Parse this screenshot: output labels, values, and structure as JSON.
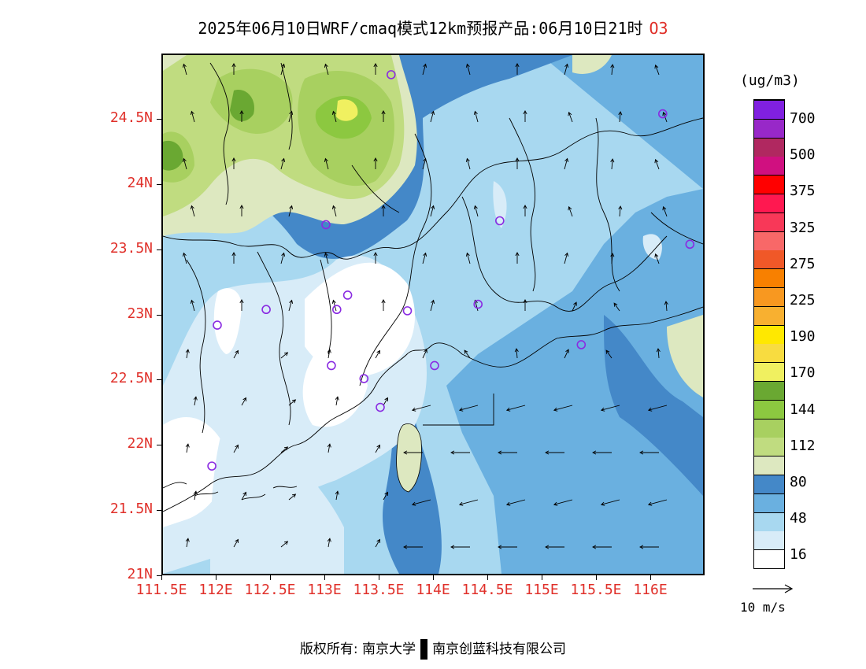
{
  "title": {
    "main": "2025年06月10日WRF/cmaq模式12km预报产品:06月10日21时",
    "species": "O3"
  },
  "axes": {
    "lat_labels": [
      "24.5N",
      "24N",
      "23.5N",
      "23N",
      "22.5N",
      "22N",
      "21.5N",
      "21N"
    ],
    "lon_labels": [
      "111.5E",
      "112E",
      "112.5E",
      "113E",
      "113.5E",
      "114E",
      "114.5E",
      "115E",
      "115.5E",
      "116E"
    ]
  },
  "colorbar": {
    "unit": "(ug/m3)",
    "labels": [
      "700",
      "500",
      "375",
      "325",
      "275",
      "225",
      "190",
      "170",
      "144",
      "112",
      "80",
      "48",
      "16"
    ],
    "colors": [
      "#ffffff",
      "#d8ecf8",
      "#a8d8f0",
      "#6ab0e0",
      "#4488c8",
      "#dde8c0",
      "#c0dc80",
      "#a8d060",
      "#8cc840",
      "#6aa832",
      "#f0f060",
      "#f8dc40",
      "#ffe800",
      "#f8b030",
      "#f89820",
      "#f88000",
      "#f05828",
      "#f86868",
      "#f83858",
      "#ff1850",
      "#ff0000",
      "#d01080",
      "#b02860",
      "#9828c8",
      "#8020e0"
    ],
    "legend_color_count": 25
  },
  "wind_reference": {
    "label": "10 m/s"
  },
  "stations": [
    {
      "lon": 113.6,
      "lat": 24.85
    },
    {
      "lon": 116.1,
      "lat": 24.55
    },
    {
      "lon": 113.0,
      "lat": 23.7
    },
    {
      "lon": 114.6,
      "lat": 23.73
    },
    {
      "lon": 116.35,
      "lat": 23.55
    },
    {
      "lon": 112.45,
      "lat": 23.05
    },
    {
      "lon": 113.1,
      "lat": 23.05
    },
    {
      "lon": 113.2,
      "lat": 23.16
    },
    {
      "lon": 113.75,
      "lat": 23.04
    },
    {
      "lon": 114.4,
      "lat": 23.09
    },
    {
      "lon": 112.0,
      "lat": 22.93
    },
    {
      "lon": 115.35,
      "lat": 22.78
    },
    {
      "lon": 113.05,
      "lat": 22.62
    },
    {
      "lon": 113.35,
      "lat": 22.52
    },
    {
      "lon": 114.0,
      "lat": 22.62
    },
    {
      "lon": 113.5,
      "lat": 22.3
    },
    {
      "lon": 111.95,
      "lat": 21.85
    }
  ],
  "footer": {
    "copyright": "版权所有: 南京大学",
    "company": "南京创蓝科技有限公司"
  }
}
